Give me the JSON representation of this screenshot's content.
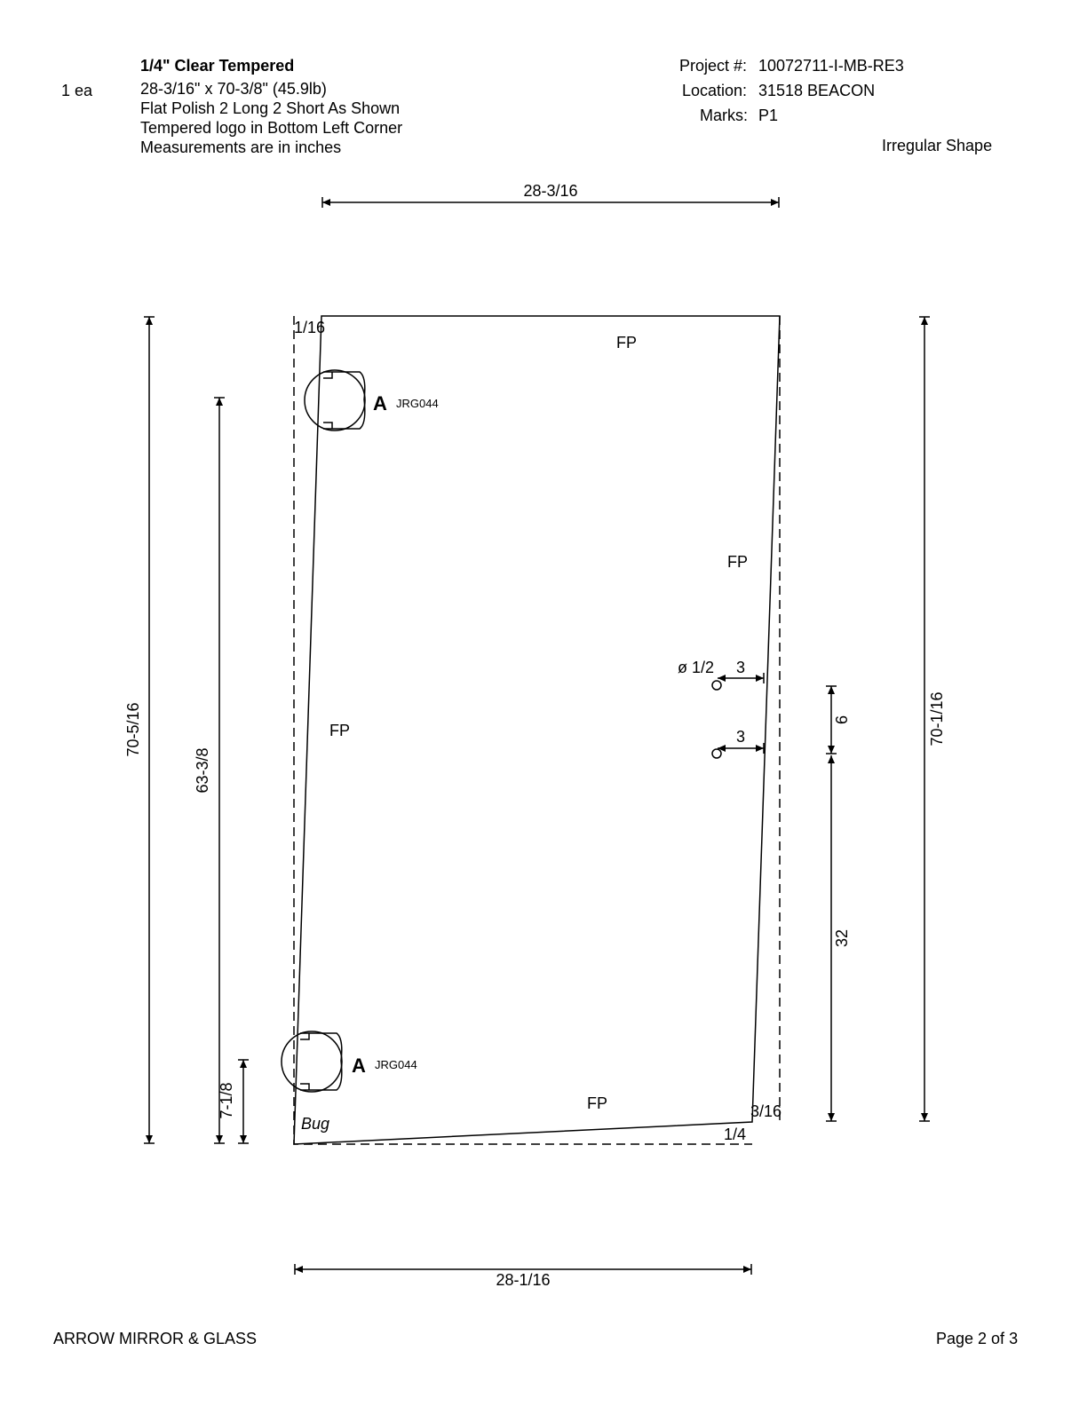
{
  "header": {
    "qty": "1 ea",
    "material": "1/4\" Clear Tempered",
    "size_line": "28-3/16\" x 70-3/8\"  (45.9lb)",
    "polish_line": "Flat Polish 2 Long 2 Short As Shown",
    "logo_line": "Tempered logo in Bottom Left Corner",
    "units_line": "Measurements are in inches",
    "project_label": "Project #:",
    "project_value": "10072711-I-MB-RE3",
    "location_label": "Location:",
    "location_value": "31518 BEACON",
    "marks_label": "Marks:",
    "marks_value": "P1",
    "shape_note": "Irregular Shape"
  },
  "drawing": {
    "top_width": "28-3/16",
    "bottom_width": "28-1/16",
    "left_height": "70-5/16",
    "right_height": "70-1/16",
    "hinge_span": "63-3/8",
    "bottom_hinge_offset": "7-1/8",
    "top_left_offset": "1/16",
    "bottom_right_offset_v": "3/16",
    "bottom_right_offset_h": "1/4",
    "edge_top": "FP",
    "edge_right": "FP",
    "edge_left": "FP",
    "edge_bottom": "FP",
    "hole_diameter": "ø 1/2",
    "hole1_offset": "3",
    "hole2_offset": "3",
    "hole_spacing": "6",
    "hole_to_bottom": "32",
    "hinge_top_mark": "A",
    "hinge_top_code": "JRG044",
    "hinge_bottom_mark": "A",
    "hinge_bottom_code": "JRG044",
    "logo_label": "Bug"
  },
  "footer": {
    "company": "ARROW MIRROR & GLASS",
    "page": "Page 2 of 3"
  }
}
